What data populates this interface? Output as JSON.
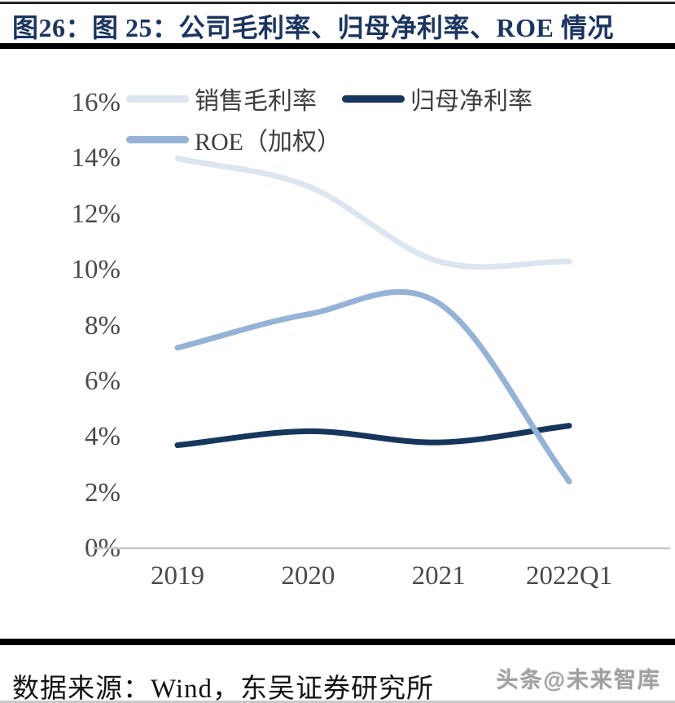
{
  "title": "图26：图 25：公司毛利率、归母净利率、ROE 情况",
  "footer": {
    "source": "数据来源：Wind，东吴证券研究所"
  },
  "watermark": "头条@未来智库",
  "colors": {
    "title_navy": "#1b3560",
    "gross_margin_line": "#dce6f1",
    "net_margin_line": "#17365d",
    "roe_line": "#95b3d7",
    "axis_line": "#c6c6c6",
    "tick_text": "#4a4a4a"
  },
  "chart_data": {
    "type": "line",
    "smooth": true,
    "grid": false,
    "legend_position": "top-left",
    "categories": [
      "2019",
      "2020",
      "2021",
      "2022Q1"
    ],
    "series": [
      {
        "name": "销售毛利率",
        "color": "#dce6f1",
        "values": [
          14.0,
          13.0,
          10.3,
          10.3
        ]
      },
      {
        "name": "归母净利率",
        "color": "#17365d",
        "values": [
          3.7,
          4.2,
          3.8,
          4.4
        ]
      },
      {
        "name": "ROE（加权）",
        "color": "#95b3d7",
        "values": [
          7.2,
          8.4,
          8.8,
          2.4
        ]
      }
    ],
    "legend_rows": [
      [
        0,
        1
      ],
      [
        2
      ]
    ],
    "ylim": [
      0,
      16
    ],
    "ytick_step": 2,
    "yticks": [
      "16%",
      "14%",
      "12%",
      "10%",
      "8%",
      "6%",
      "4%",
      "2%",
      "0%"
    ],
    "xlabel": "",
    "ylabel": ""
  }
}
